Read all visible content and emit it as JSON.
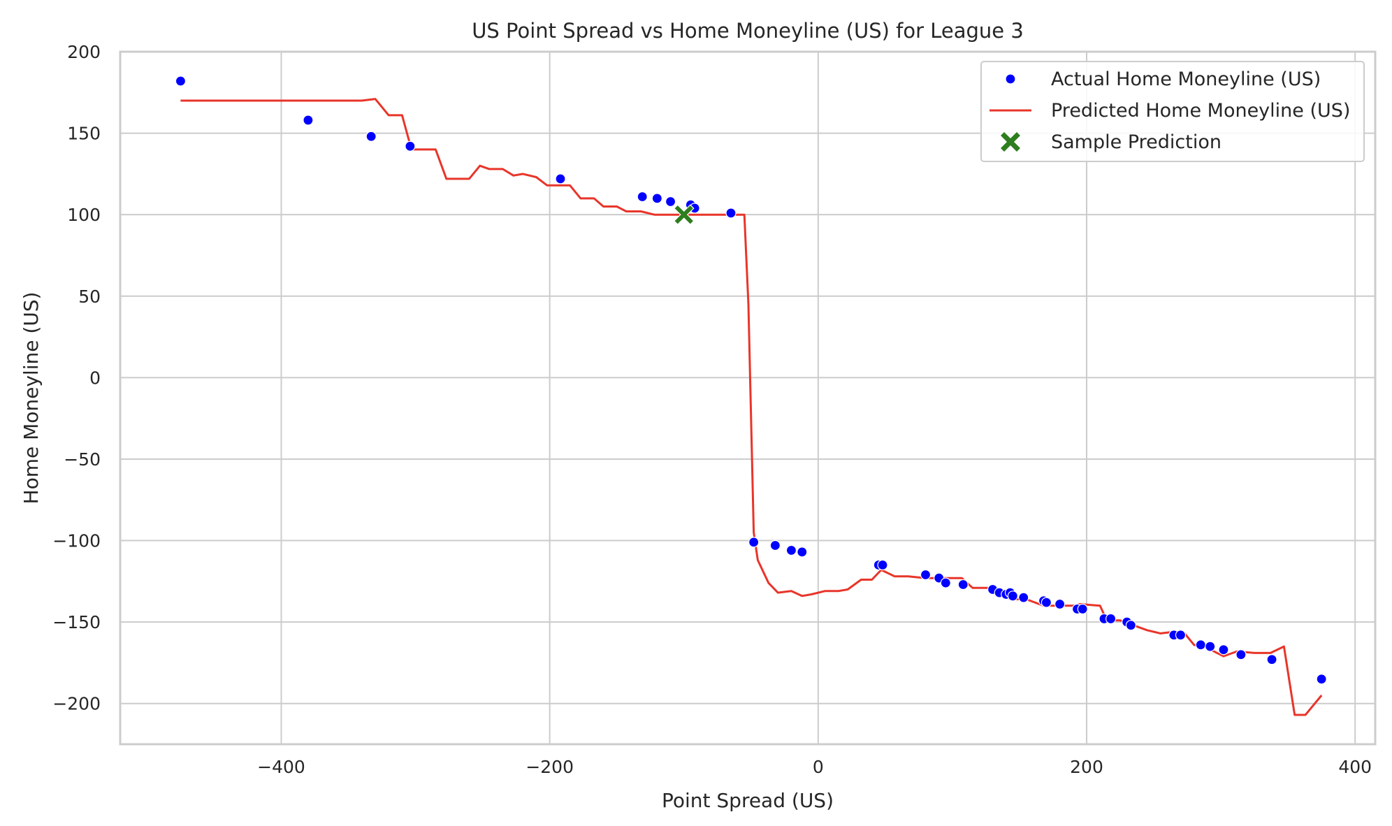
{
  "chart_data": {
    "type": "scatter",
    "title": "US Point Spread vs Home Moneyline (US) for League 3",
    "xlabel": "Point Spread (US)",
    "ylabel": "Home Moneyline (US)",
    "xlim": [
      -520,
      415
    ],
    "ylim": [
      -225,
      200
    ],
    "xticks": [
      -400,
      -200,
      0,
      200,
      400
    ],
    "xtick_labels": [
      "−400",
      "−200",
      "0",
      "200",
      "400"
    ],
    "yticks": [
      200,
      150,
      100,
      50,
      0,
      -50,
      -100,
      -150,
      -200
    ],
    "ytick_labels": [
      "200",
      "150",
      "100",
      "50",
      "0",
      "−50",
      "−100",
      "−150",
      "−200"
    ],
    "grid": true,
    "legend_position": "top-right",
    "colors": {
      "actual": "#0000ff",
      "predicted": "#e8352a",
      "sample": "#2e7d1e",
      "grid": "#cccccc",
      "frame": "#cccccc"
    },
    "series": [
      {
        "name": "Actual Home Moneyline (US)",
        "type": "scatter",
        "points": [
          [
            -475,
            182
          ],
          [
            -380,
            158
          ],
          [
            -333,
            148
          ],
          [
            -304,
            142
          ],
          [
            -192,
            122
          ],
          [
            -131,
            111
          ],
          [
            -120,
            110
          ],
          [
            -110,
            108
          ],
          [
            -95,
            106
          ],
          [
            -92,
            104
          ],
          [
            -65,
            101
          ],
          [
            -48,
            -101
          ],
          [
            -32,
            -103
          ],
          [
            -20,
            -106
          ],
          [
            -12,
            -107
          ],
          [
            45,
            -115
          ],
          [
            48,
            -115
          ],
          [
            80,
            -121
          ],
          [
            90,
            -123
          ],
          [
            95,
            -126
          ],
          [
            108,
            -127
          ],
          [
            130,
            -130
          ],
          [
            135,
            -132
          ],
          [
            140,
            -133
          ],
          [
            143,
            -132
          ],
          [
            145,
            -134
          ],
          [
            153,
            -135
          ],
          [
            168,
            -137
          ],
          [
            170,
            -138
          ],
          [
            180,
            -139
          ],
          [
            193,
            -142
          ],
          [
            197,
            -142
          ],
          [
            213,
            -148
          ],
          [
            218,
            -148
          ],
          [
            230,
            -150
          ],
          [
            233,
            -152
          ],
          [
            265,
            -158
          ],
          [
            270,
            -158
          ],
          [
            285,
            -164
          ],
          [
            292,
            -165
          ],
          [
            302,
            -167
          ],
          [
            315,
            -170
          ],
          [
            338,
            -173
          ],
          [
            375,
            -185
          ]
        ]
      },
      {
        "name": "Predicted Home Moneyline (US)",
        "type": "line",
        "points": [
          [
            -475,
            170
          ],
          [
            -340,
            170
          ],
          [
            -330,
            171
          ],
          [
            -320,
            161
          ],
          [
            -310,
            161
          ],
          [
            -303,
            140
          ],
          [
            -285,
            140
          ],
          [
            -277,
            122
          ],
          [
            -260,
            122
          ],
          [
            -252,
            130
          ],
          [
            -245,
            128
          ],
          [
            -235,
            128
          ],
          [
            -227,
            124
          ],
          [
            -220,
            125
          ],
          [
            -210,
            123
          ],
          [
            -202,
            118
          ],
          [
            -185,
            118
          ],
          [
            -177,
            110
          ],
          [
            -167,
            110
          ],
          [
            -160,
            105
          ],
          [
            -150,
            105
          ],
          [
            -143,
            102
          ],
          [
            -132,
            102
          ],
          [
            -122,
            100
          ],
          [
            -90,
            100
          ],
          [
            -55,
            100
          ],
          [
            -52,
            45
          ],
          [
            -48,
            -95
          ],
          [
            -45,
            -112
          ],
          [
            -37,
            -126
          ],
          [
            -30,
            -132
          ],
          [
            -20,
            -131
          ],
          [
            -12,
            -134
          ],
          [
            -5,
            -133
          ],
          [
            5,
            -131
          ],
          [
            15,
            -131
          ],
          [
            22,
            -130
          ],
          [
            32,
            -124
          ],
          [
            40,
            -124
          ],
          [
            47,
            -118
          ],
          [
            57,
            -122
          ],
          [
            67,
            -122
          ],
          [
            80,
            -123
          ],
          [
            100,
            -123
          ],
          [
            107,
            -123
          ],
          [
            115,
            -129
          ],
          [
            130,
            -129
          ],
          [
            143,
            -136
          ],
          [
            155,
            -136
          ],
          [
            168,
            -140
          ],
          [
            190,
            -140
          ],
          [
            195,
            -139
          ],
          [
            210,
            -140
          ],
          [
            215,
            -149
          ],
          [
            225,
            -149
          ],
          [
            235,
            -152
          ],
          [
            245,
            -155
          ],
          [
            255,
            -157
          ],
          [
            265,
            -156
          ],
          [
            272,
            -156
          ],
          [
            280,
            -164
          ],
          [
            290,
            -166
          ],
          [
            302,
            -171
          ],
          [
            312,
            -168
          ],
          [
            325,
            -169
          ],
          [
            337,
            -169
          ],
          [
            347,
            -165
          ],
          [
            355,
            -207
          ],
          [
            363,
            -207
          ],
          [
            375,
            -195
          ]
        ]
      },
      {
        "name": "Sample Prediction",
        "type": "scatter",
        "marker": "X",
        "points": [
          [
            -100,
            100
          ]
        ]
      }
    ]
  }
}
